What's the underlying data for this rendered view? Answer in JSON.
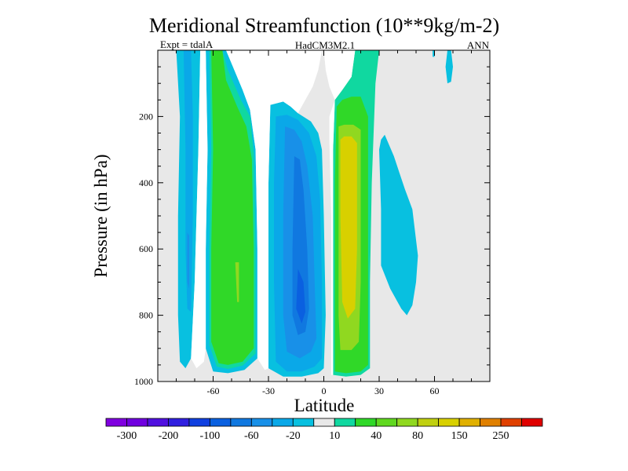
{
  "chart_data": {
    "type": "contour",
    "title": "Meridional Streamfunction (10**9kg/m-2)",
    "subtitle_left": "Expt = tdalA",
    "subtitle_center": "HadCM3M2.1",
    "subtitle_right": "ANN",
    "xlabel": "Latitude",
    "ylabel": "Pressure (in hPa)",
    "xlim": [
      -90,
      90
    ],
    "ylim": [
      1000,
      0
    ],
    "xticks": [
      -60,
      -30,
      0,
      30,
      60
    ],
    "xtick_labels": [
      "-60",
      "-30",
      "0",
      "30",
      "60"
    ],
    "yticks": [
      200,
      400,
      600,
      800,
      1000
    ],
    "ytick_labels": [
      "200",
      "400",
      "600",
      "800",
      "1000"
    ],
    "background_color": "#e8e8e8",
    "regions": [
      {
        "name": "cyan-sh-polar-tongue",
        "color": "#08c0e0",
        "points": [
          [
            -80,
            0
          ],
          [
            -78,
            200
          ],
          [
            -79,
            500
          ],
          [
            -79,
            800
          ],
          [
            -78,
            940
          ],
          [
            -75,
            960
          ],
          [
            -72,
            930
          ],
          [
            -70,
            700
          ],
          [
            -68,
            300
          ],
          [
            -67,
            0
          ]
        ]
      },
      {
        "name": "blue-sh-polar-core",
        "color": "#0aa8e8",
        "points": [
          [
            -76,
            0
          ],
          [
            -75,
            300
          ],
          [
            -75,
            600
          ],
          [
            -74,
            780
          ],
          [
            -72,
            790
          ],
          [
            -71,
            500
          ],
          [
            -71,
            200
          ],
          [
            -72,
            0
          ]
        ]
      },
      {
        "name": "blue-sh-polar-inner",
        "color": "#1890e8",
        "points": [
          [
            -74,
            550
          ],
          [
            -74,
            700
          ],
          [
            -73,
            720
          ],
          [
            -73,
            560
          ]
        ]
      },
      {
        "name": "cyan-ferrel",
        "color": "#08c0e0",
        "points": [
          [
            -64,
            0
          ],
          [
            -63,
            300
          ],
          [
            -64,
            600
          ],
          [
            -64,
            900
          ],
          [
            -60,
            970
          ],
          [
            -52,
            975
          ],
          [
            -43,
            965
          ],
          [
            -36,
            930
          ],
          [
            -36,
            600
          ],
          [
            -37,
            300
          ],
          [
            -40,
            180
          ],
          [
            -44,
            120
          ],
          [
            -50,
            40
          ],
          [
            -53,
            0
          ]
        ]
      },
      {
        "name": "green-ferrel-edge",
        "color": "#10d8a0",
        "points": [
          [
            -62,
            0
          ],
          [
            -61,
            300
          ],
          [
            -62,
            600
          ],
          [
            -62,
            890
          ],
          [
            -58,
            955
          ],
          [
            -52,
            962
          ],
          [
            -44,
            952
          ],
          [
            -37,
            915
          ],
          [
            -37,
            600
          ],
          [
            -38,
            310
          ],
          [
            -40,
            200
          ],
          [
            -45,
            150
          ],
          [
            -52,
            60
          ],
          [
            -55,
            0
          ]
        ]
      },
      {
        "name": "green-ferrel",
        "color": "#30d828",
        "points": [
          [
            -61,
            0
          ],
          [
            -60,
            300
          ],
          [
            -61,
            600
          ],
          [
            -61,
            880
          ],
          [
            -57,
            945
          ],
          [
            -52,
            950
          ],
          [
            -44,
            940
          ],
          [
            -38,
            900
          ],
          [
            -38,
            600
          ],
          [
            -39,
            330
          ],
          [
            -42,
            230
          ],
          [
            -47,
            170
          ],
          [
            -53,
            90
          ],
          [
            -55,
            0
          ]
        ]
      },
      {
        "name": "lime-ferrel-core",
        "color": "#90d820",
        "points": [
          [
            -48,
            640
          ],
          [
            -47,
            760
          ],
          [
            -46,
            760
          ],
          [
            -46,
            640
          ]
        ]
      },
      {
        "name": "cyan-sh-hadley",
        "color": "#08c0e0",
        "points": [
          [
            -29,
            165
          ],
          [
            -30,
            400
          ],
          [
            -30,
            700
          ],
          [
            -30,
            960
          ],
          [
            -22,
            985
          ],
          [
            -12,
            985
          ],
          [
            -3,
            975
          ],
          [
            0,
            960
          ],
          [
            1,
            800
          ],
          [
            0,
            500
          ],
          [
            -1,
            300
          ],
          [
            -3,
            250
          ],
          [
            -7,
            215
          ],
          [
            -14,
            190
          ],
          [
            -18,
            170
          ],
          [
            -22,
            155
          ]
        ]
      },
      {
        "name": "blue1-sh-hadley",
        "color": "#0aa8e8",
        "points": [
          [
            -26,
            200
          ],
          [
            -27,
            400
          ],
          [
            -27,
            700
          ],
          [
            -26,
            940
          ],
          [
            -20,
            970
          ],
          [
            -12,
            970
          ],
          [
            -5,
            955
          ],
          [
            -1,
            930
          ],
          [
            -1,
            700
          ],
          [
            -2,
            450
          ],
          [
            -4,
            320
          ],
          [
            -8,
            250
          ],
          [
            -14,
            210
          ],
          [
            -20,
            195
          ]
        ]
      },
      {
        "name": "blue2-sh-hadley",
        "color": "#1890e8",
        "points": [
          [
            -21,
            230
          ],
          [
            -22,
            500
          ],
          [
            -22,
            800
          ],
          [
            -20,
            910
          ],
          [
            -13,
            930
          ],
          [
            -7,
            910
          ],
          [
            -4,
            870
          ],
          [
            -5,
            700
          ],
          [
            -6,
            500
          ],
          [
            -9,
            350
          ],
          [
            -12,
            275
          ],
          [
            -16,
            240
          ]
        ]
      },
      {
        "name": "blue3-sh-hadley",
        "color": "#1078e0",
        "points": [
          [
            -16,
            320
          ],
          [
            -17,
            600
          ],
          [
            -17,
            800
          ],
          [
            -14,
            860
          ],
          [
            -10,
            850
          ],
          [
            -8,
            780
          ],
          [
            -9,
            600
          ],
          [
            -11,
            420
          ],
          [
            -13,
            330
          ]
        ]
      },
      {
        "name": "blue4-sh-hadley",
        "color": "#0a60e0",
        "points": [
          [
            -14,
            660
          ],
          [
            -15,
            780
          ],
          [
            -12,
            825
          ],
          [
            -10,
            790
          ],
          [
            -11,
            700
          ]
        ]
      },
      {
        "name": "green-edge-nh-hadley",
        "color": "#10d8a0",
        "points": [
          [
            6,
            150
          ],
          [
            5,
            300
          ],
          [
            5,
            700
          ],
          [
            5,
            980
          ],
          [
            12,
            985
          ],
          [
            20,
            980
          ],
          [
            25,
            960
          ],
          [
            25,
            700
          ],
          [
            26,
            400
          ],
          [
            28,
            100
          ],
          [
            30,
            0
          ],
          [
            17,
            0
          ],
          [
            15,
            80
          ],
          [
            10,
            120
          ]
        ]
      },
      {
        "name": "green-nh-hadley",
        "color": "#30d828",
        "points": [
          [
            7,
            170
          ],
          [
            6,
            400
          ],
          [
            6,
            700
          ],
          [
            6,
            970
          ],
          [
            12,
            975
          ],
          [
            20,
            970
          ],
          [
            24,
            950
          ],
          [
            24,
            700
          ],
          [
            24,
            400
          ],
          [
            24,
            200
          ],
          [
            20,
            140
          ],
          [
            15,
            140
          ],
          [
            10,
            150
          ]
        ]
      },
      {
        "name": "lime-nh-hadley",
        "color": "#90d820",
        "points": [
          [
            8,
            230
          ],
          [
            8,
            500
          ],
          [
            8,
            800
          ],
          [
            9,
            905
          ],
          [
            15,
            905
          ],
          [
            19,
            880
          ],
          [
            20,
            700
          ],
          [
            20,
            400
          ],
          [
            20,
            240
          ],
          [
            16,
            225
          ],
          [
            11,
            225
          ]
        ]
      },
      {
        "name": "yellow-nh-hadley",
        "color": "#d8d000",
        "points": [
          [
            9,
            270
          ],
          [
            9,
            500
          ],
          [
            10,
            760
          ],
          [
            13,
            810
          ],
          [
            17,
            780
          ],
          [
            18,
            600
          ],
          [
            18,
            400
          ],
          [
            18,
            280
          ],
          [
            15,
            260
          ],
          [
            11,
            260
          ]
        ]
      },
      {
        "name": "cyan-nh-mid",
        "color": "#08c0e0",
        "points": [
          [
            30,
            300
          ],
          [
            31,
            480
          ],
          [
            31,
            650
          ],
          [
            36,
            720
          ],
          [
            42,
            780
          ],
          [
            45,
            800
          ],
          [
            48,
            770
          ],
          [
            50,
            700
          ],
          [
            51,
            620
          ],
          [
            48,
            480
          ],
          [
            44,
            420
          ],
          [
            41,
            370
          ],
          [
            38,
            320
          ],
          [
            33,
            255
          ],
          [
            31,
            270
          ]
        ]
      },
      {
        "name": "cyan-nh-polar",
        "color": "#08c0e0",
        "points": [
          [
            67,
            0
          ],
          [
            66,
            50
          ],
          [
            67,
            100
          ],
          [
            69,
            95
          ],
          [
            70,
            50
          ],
          [
            69,
            0
          ]
        ]
      },
      {
        "name": "cyan-nh-dot",
        "color": "#08c0e0",
        "points": [
          [
            59,
            0
          ],
          [
            59,
            20
          ],
          [
            60,
            20
          ],
          [
            60,
            0
          ]
        ]
      },
      {
        "name": "white-zero-band-1",
        "color": "#ffffff",
        "points": [
          [
            -67,
            0
          ],
          [
            -68,
            300
          ],
          [
            -70,
            700
          ],
          [
            -72,
            930
          ],
          [
            -69,
            960
          ],
          [
            -65,
            940
          ],
          [
            -64,
            900
          ],
          [
            -64,
            600
          ],
          [
            -63,
            300
          ],
          [
            -64,
            0
          ]
        ]
      },
      {
        "name": "white-zero-band-2",
        "color": "#ffffff",
        "points": [
          [
            -53,
            0
          ],
          [
            -50,
            40
          ],
          [
            -44,
            120
          ],
          [
            -40,
            180
          ],
          [
            -37,
            300
          ],
          [
            -36,
            600
          ],
          [
            -36,
            930
          ],
          [
            -32,
            965
          ],
          [
            -30,
            960
          ],
          [
            -30,
            700
          ],
          [
            -30,
            400
          ],
          [
            -29,
            165
          ],
          [
            -22,
            155
          ],
          [
            -18,
            170
          ],
          [
            -14,
            190
          ],
          [
            -10,
            150
          ],
          [
            -6,
            110
          ],
          [
            -3,
            60
          ],
          [
            -1,
            0
          ]
        ]
      },
      {
        "name": "white-zero-band-3",
        "color": "#ffffff",
        "points": [
          [
            0,
            0
          ],
          [
            1,
            60
          ],
          [
            3,
            110
          ],
          [
            6,
            150
          ],
          [
            10,
            120
          ],
          [
            15,
            80
          ],
          [
            17,
            0
          ]
        ]
      },
      {
        "name": "white-zero-band-4",
        "color": "#ffffff",
        "points": [
          [
            3,
            270
          ],
          [
            4,
            500
          ],
          [
            4,
            800
          ],
          [
            4,
            980
          ],
          [
            5,
            980
          ],
          [
            5,
            700
          ],
          [
            5,
            300
          ],
          [
            6,
            150
          ],
          [
            3,
            200
          ]
        ]
      }
    ],
    "legend": {
      "colors": [
        "#8000e0",
        "#7000e0",
        "#5010e0",
        "#3020e0",
        "#1040e0",
        "#0a60e0",
        "#1078e0",
        "#1890e8",
        "#0aa8e8",
        "#08c0e0",
        "#e8e8e8",
        "#10d8a0",
        "#30d828",
        "#60d820",
        "#90d820",
        "#c0d010",
        "#d8d000",
        "#e0b000",
        "#e08000",
        "#e04000",
        "#e00000"
      ],
      "labels": [
        "-300",
        "-200",
        "-100",
        "-60",
        "-20",
        "10",
        "40",
        "80",
        "150",
        "250"
      ],
      "label_boundaries": [
        1,
        3,
        5,
        7,
        9,
        11,
        13,
        15,
        17,
        19
      ]
    }
  }
}
